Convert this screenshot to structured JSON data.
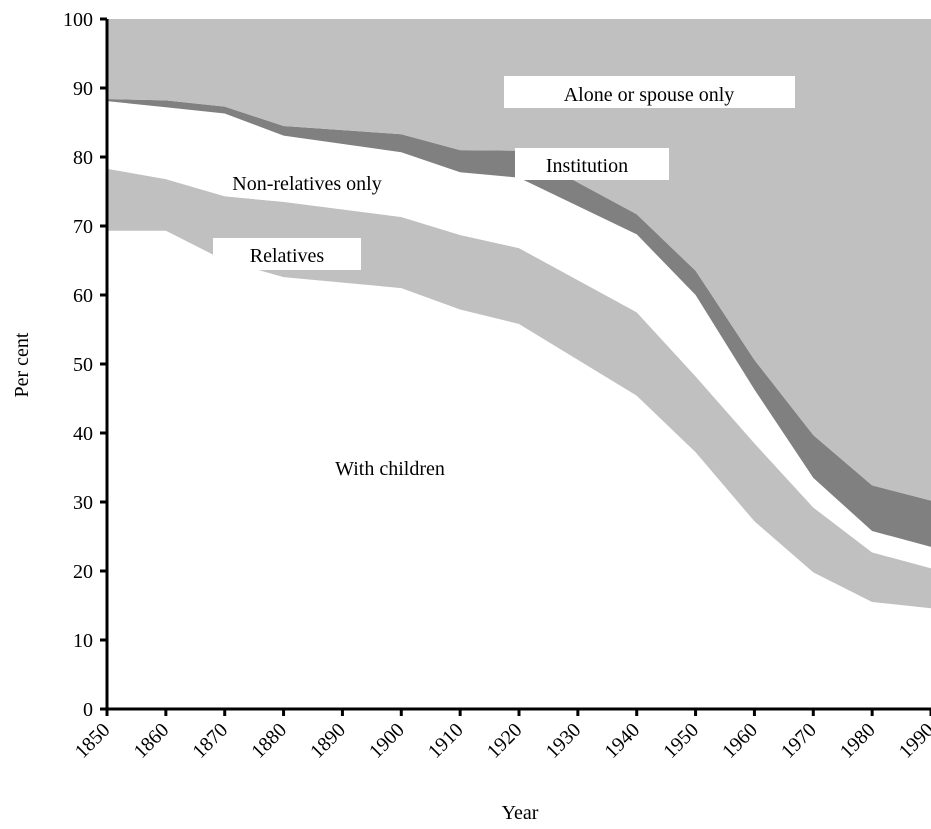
{
  "chart_data": {
    "type": "area",
    "stacked": true,
    "xlabel": "Year",
    "ylabel": "Per cent",
    "ylim": [
      0,
      100
    ],
    "xlim": [
      1850,
      1990
    ],
    "y_ticks": [
      0,
      10,
      20,
      30,
      40,
      50,
      60,
      70,
      80,
      90,
      100
    ],
    "x_ticks": [
      1850,
      1860,
      1870,
      1880,
      1890,
      1900,
      1910,
      1920,
      1930,
      1940,
      1950,
      1960,
      1970,
      1980,
      1990
    ],
    "x": [
      1850,
      1860,
      1870,
      1880,
      1900,
      1910,
      1920,
      1940,
      1950,
      1960,
      1970,
      1980,
      1990
    ],
    "series": [
      {
        "name": "With children",
        "color": "#ffffff",
        "values": [
          69.3,
          69.3,
          65.0,
          62.6,
          61.0,
          57.9,
          55.8,
          45.4,
          37.2,
          27.2,
          19.8,
          15.5,
          14.6
        ]
      },
      {
        "name": "Relatives",
        "color": "#c0c0c0",
        "values": [
          9.0,
          7.5,
          9.3,
          10.9,
          10.3,
          10.8,
          11.0,
          12.1,
          11.0,
          11.3,
          9.4,
          7.2,
          5.8
        ]
      },
      {
        "name": "Non-relatives only",
        "color": "#ffffff",
        "values": [
          9.8,
          10.4,
          12.0,
          9.6,
          9.4,
          9.1,
          10.2,
          11.3,
          11.8,
          7.8,
          4.3,
          3.1,
          3.1
        ]
      },
      {
        "name": "Institution",
        "color": "#808080",
        "values": [
          0.3,
          1.0,
          1.0,
          1.4,
          2.6,
          3.2,
          3.9,
          2.9,
          3.5,
          4.3,
          6.2,
          6.6,
          6.7
        ]
      },
      {
        "name": "Alone or spouse only",
        "color": "#c0c0c0",
        "values": [
          11.6,
          11.8,
          12.7,
          15.5,
          16.7,
          19.0,
          19.1,
          28.3,
          36.5,
          49.4,
          60.3,
          67.6,
          69.8
        ]
      }
    ],
    "labels": [
      "Alone or spouse only",
      "Institution",
      "Non-relatives only",
      "Relatives",
      "With children"
    ],
    "grid": false,
    "legend": "none"
  }
}
